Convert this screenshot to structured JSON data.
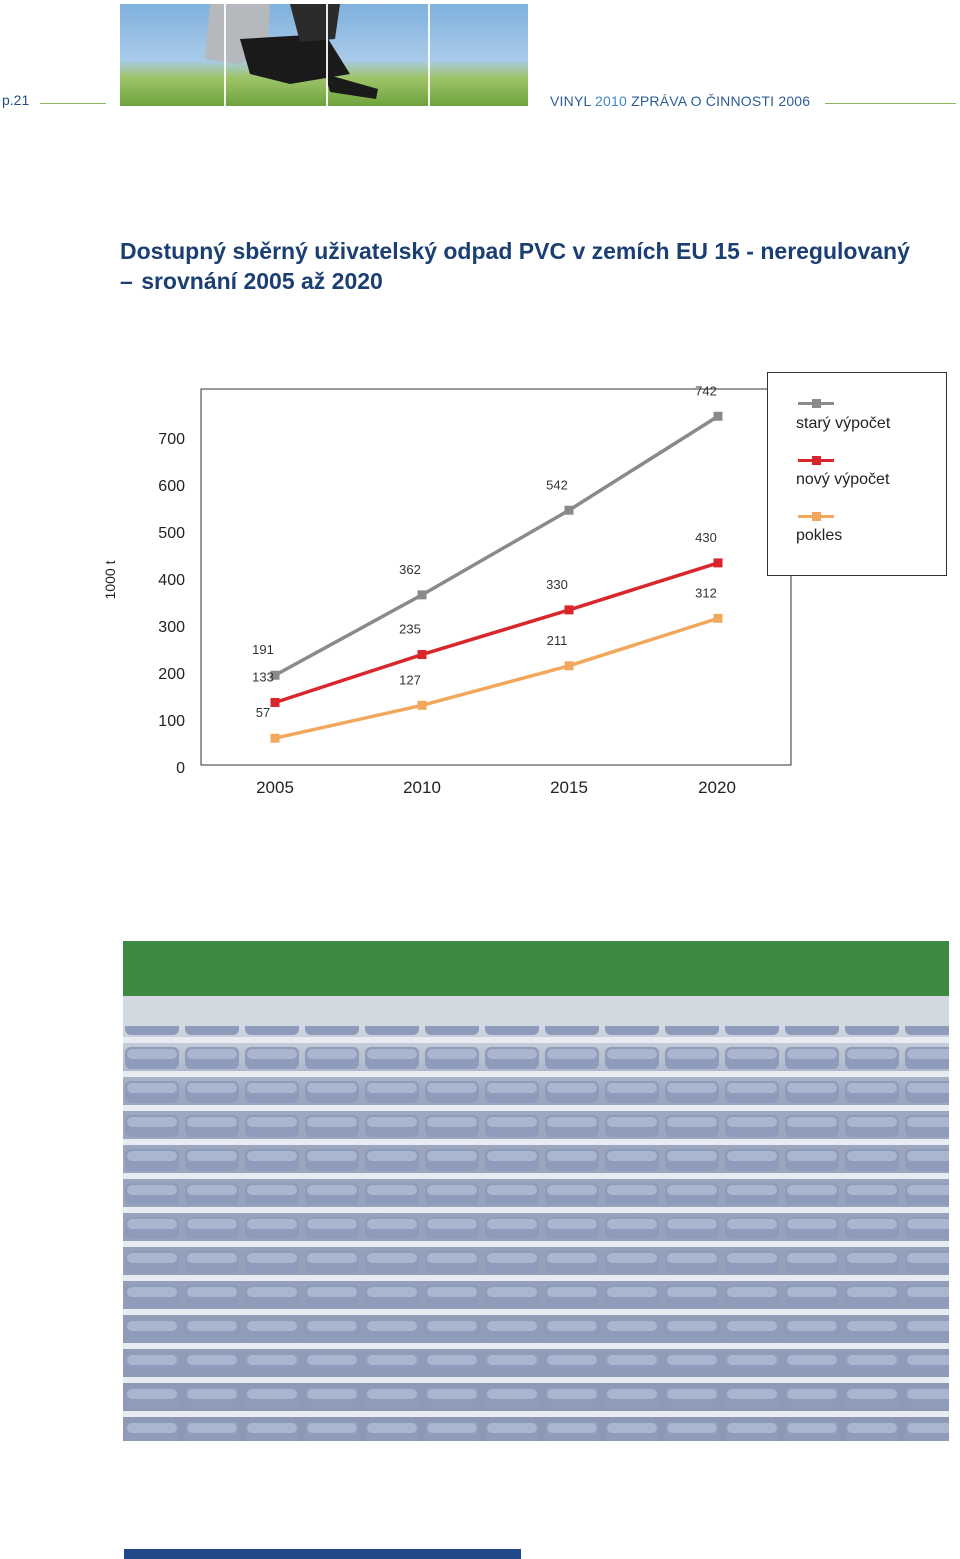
{
  "header": {
    "page_number": "p.21",
    "title_prefix": "VINYL ",
    "title_year": "2010",
    "title_suffix": " ZPRÁVA O ČINNOSTI 2006"
  },
  "title": {
    "line1": "Dostupný sběrný uživatelský odpad PVC v zemích EU 15 - neregulovaný",
    "dash": "–",
    "line2": "srovnání 2005 až 2020"
  },
  "colors": {
    "brand_blue": "#1b3f73",
    "header_line": "#8bb85a",
    "bottom_bar": "#21498a"
  },
  "chart_data": {
    "type": "line",
    "xlabel": "",
    "ylabel": "1000 t",
    "x": [
      2005,
      2010,
      2015,
      2020
    ],
    "x_tick_labels": [
      "2005",
      "2010",
      "2015",
      "2020"
    ],
    "y_ticks": [
      0,
      100,
      200,
      300,
      400,
      500,
      600,
      700
    ],
    "y_tick_labels": [
      "0",
      "100",
      "200",
      "300",
      "400",
      "500",
      "600",
      "700"
    ],
    "ylim": [
      0,
      800
    ],
    "grid": false,
    "legend_position": "top-right",
    "series": [
      {
        "name": "starý výpočet",
        "color": "#8a8a8a",
        "values": [
          191,
          362,
          542,
          742
        ],
        "labels": [
          "191",
          "362",
          "542",
          "742"
        ]
      },
      {
        "name": "nový výpočet",
        "color": "#d9262c",
        "values": [
          133,
          235,
          330,
          430
        ],
        "labels": [
          "133",
          "235",
          "330",
          "430"
        ]
      },
      {
        "name": "pokles",
        "color": "#f2a85c",
        "values": [
          57,
          127,
          211,
          312
        ],
        "labels": [
          "57",
          "127",
          "211",
          "312"
        ]
      }
    ]
  },
  "images": {
    "top_photo": "person-with-laptop-on-grass",
    "main_photo": "empty-stadium-seats"
  }
}
